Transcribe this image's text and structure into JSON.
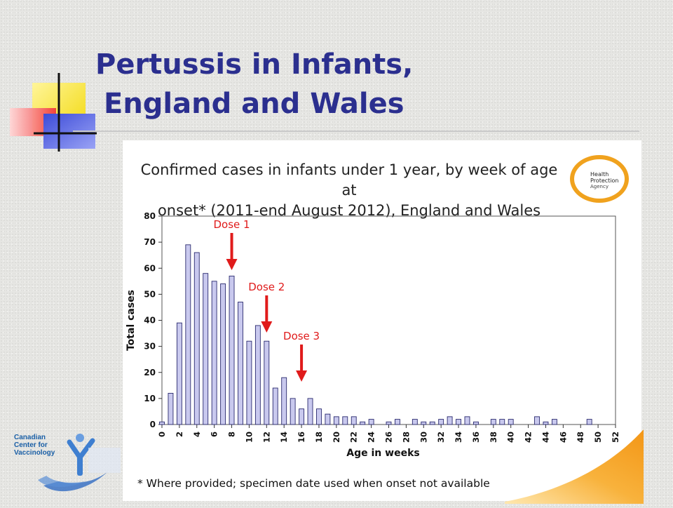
{
  "slide": {
    "title_line1": "Pertussis in Infants,",
    "title_line2": "England and Wales",
    "chart_title_line1": "Confirmed cases in infants under 1 year, by week of age at",
    "chart_title_line2": "onset* (2011-end August 2012), England and Wales",
    "footnote": "* Where provided; specimen date used when onset not available",
    "hpa_logo": [
      "Health",
      "Protection",
      "Agency"
    ],
    "ccfv_logo": [
      "Canadian",
      "Center for",
      "Vaccinology"
    ]
  },
  "colors": {
    "title": "#2b2f8f",
    "bar_fill": "#c9c9ee",
    "bar_stroke": "#2a2a6e",
    "annotation": "#e01b1b",
    "hpa_ring": "#f0a21e",
    "ccfv_blue": "#1a5fa6",
    "corner_orange": "#f5a324"
  },
  "chart_data": {
    "type": "bar",
    "xlabel": "Age in weeks",
    "ylabel": "Total cases",
    "ylim": [
      0,
      80
    ],
    "yticks": [
      0,
      10,
      20,
      30,
      40,
      50,
      60,
      70,
      80
    ],
    "xlim": [
      0,
      52
    ],
    "xticks": [
      0,
      2,
      4,
      6,
      8,
      10,
      12,
      14,
      16,
      18,
      20,
      22,
      24,
      26,
      28,
      30,
      32,
      34,
      36,
      38,
      40,
      42,
      44,
      46,
      48,
      50,
      52
    ],
    "categories": [
      0,
      1,
      2,
      3,
      4,
      5,
      6,
      7,
      8,
      9,
      10,
      11,
      12,
      13,
      14,
      15,
      16,
      17,
      18,
      19,
      20,
      21,
      22,
      23,
      24,
      25,
      26,
      27,
      28,
      29,
      30,
      31,
      32,
      33,
      34,
      35,
      36,
      37,
      38,
      39,
      40,
      41,
      42,
      43,
      44,
      45,
      46,
      47,
      48,
      49,
      50,
      51
    ],
    "values": [
      1,
      12,
      39,
      69,
      66,
      58,
      55,
      54,
      57,
      47,
      32,
      38,
      32,
      14,
      18,
      10,
      6,
      10,
      6,
      4,
      3,
      3,
      3,
      1,
      2,
      0,
      1,
      2,
      0,
      2,
      1,
      1,
      2,
      3,
      2,
      3,
      1,
      0,
      2,
      2,
      2,
      0,
      0,
      3,
      1,
      2,
      0,
      0,
      0,
      2,
      0,
      0
    ],
    "annotations": [
      {
        "text": "Dose 1",
        "x": 8
      },
      {
        "text": "Dose 2",
        "x": 12
      },
      {
        "text": "Dose  3",
        "x": 16
      }
    ],
    "grid": false,
    "legend": "none"
  }
}
